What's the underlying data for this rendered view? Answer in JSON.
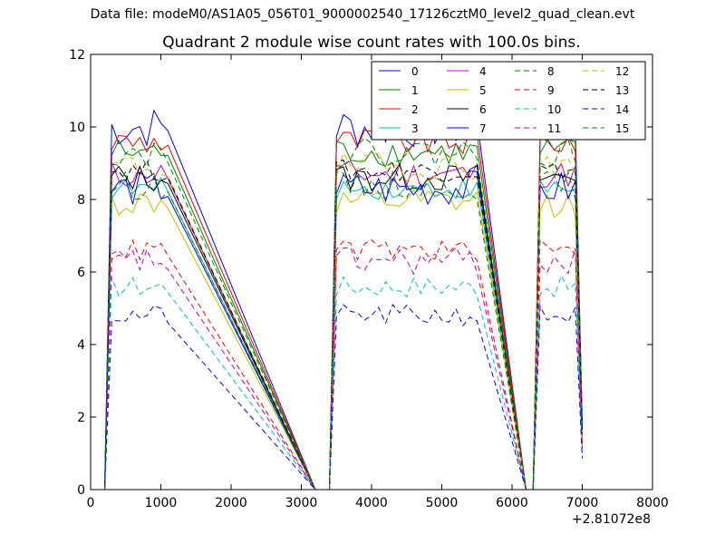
{
  "figure": {
    "suptitle": "Data file: modeM0/AS1A05_056T01_9000002540_17126cztM0_level2_quad_clean.evt",
    "title": "Quadrant 2 module wise count rates with 100.0s bins.",
    "x_offset_label": "+2.81072e8"
  },
  "colors": {
    "blue": "#0000ff",
    "green": "#008000",
    "red": "#ff0000",
    "cyan": "#00bfbf",
    "magenta": "#bf00bf",
    "olive": "#bfbf00",
    "black": "#000000"
  },
  "chart_data": {
    "type": "line",
    "title": "Quadrant 2 module wise count rates with 100.0s bins.",
    "xlabel": "",
    "ylabel": "",
    "x_offset": "+2.81072e8",
    "xlim": [
      0,
      8000
    ],
    "ylim": [
      0,
      12
    ],
    "xticks": [
      0,
      1000,
      2000,
      3000,
      4000,
      5000,
      6000,
      7000,
      8000
    ],
    "yticks": [
      0,
      2,
      4,
      6,
      8,
      10,
      12
    ],
    "grid": false,
    "legend": {
      "placement": "top-right",
      "columns": 4
    },
    "segments": [
      {
        "n": 10,
        "x0": 200,
        "x1": 1100,
        "active": [
          0,
          1,
          1,
          1,
          1,
          1,
          1,
          1,
          1,
          1
        ]
      },
      {
        "n": 24,
        "x0": 3200,
        "x1": 5500,
        "active": [
          0,
          0,
          0,
          1,
          1,
          1,
          1,
          1,
          1,
          1,
          1,
          1,
          1,
          1,
          1,
          1,
          1,
          1,
          1,
          1,
          1,
          1,
          1,
          1
        ]
      },
      {
        "n": 8,
        "x0": 6200,
        "x1": 6900,
        "active": [
          0,
          0,
          1,
          1,
          1,
          1,
          1,
          1
        ]
      }
    ],
    "x_end": 7000,
    "series": [
      {
        "name": "0",
        "color": "#0000ff",
        "dash": "solid",
        "level": 10.0,
        "amp": 0.6
      },
      {
        "name": "1",
        "color": "#008000",
        "dash": "solid",
        "level": 9.3,
        "amp": 0.4
      },
      {
        "name": "2",
        "color": "#ff0000",
        "dash": "solid",
        "level": 9.6,
        "amp": 0.4
      },
      {
        "name": "3",
        "color": "#00bfbf",
        "dash": "solid",
        "level": 8.3,
        "amp": 0.3
      },
      {
        "name": "4",
        "color": "#bf00bf",
        "dash": "solid",
        "level": 8.7,
        "amp": 0.4
      },
      {
        "name": "5",
        "color": "#bfbf00",
        "dash": "solid",
        "level": 7.9,
        "amp": 0.4
      },
      {
        "name": "6",
        "color": "#000000",
        "dash": "solid",
        "level": 8.6,
        "amp": 0.4
      },
      {
        "name": "7",
        "color": "#0000ff",
        "dash": "solid",
        "level": 8.3,
        "amp": 0.5
      },
      {
        "name": "8",
        "color": "#008000",
        "dash": "dashed",
        "level": 8.4,
        "amp": 0.4
      },
      {
        "name": "9",
        "color": "#ff0000",
        "dash": "dashed",
        "level": 6.6,
        "amp": 0.3
      },
      {
        "name": "10",
        "color": "#00bfbf",
        "dash": "dashed",
        "level": 5.6,
        "amp": 0.3
      },
      {
        "name": "11",
        "color": "#bf00bf",
        "dash": "dashed",
        "level": 6.3,
        "amp": 0.4
      },
      {
        "name": "12",
        "color": "#bfbf00",
        "dash": "dashed",
        "level": 8.9,
        "amp": 0.4
      },
      {
        "name": "13",
        "color": "#000000",
        "dash": "dashed",
        "level": 8.8,
        "amp": 0.3
      },
      {
        "name": "14",
        "color": "#0000ff",
        "dash": "dashed",
        "level": 4.8,
        "amp": 0.3
      },
      {
        "name": "15",
        "color": "#008000",
        "dash": "dashed",
        "level": 9.3,
        "amp": 0.4
      }
    ]
  }
}
